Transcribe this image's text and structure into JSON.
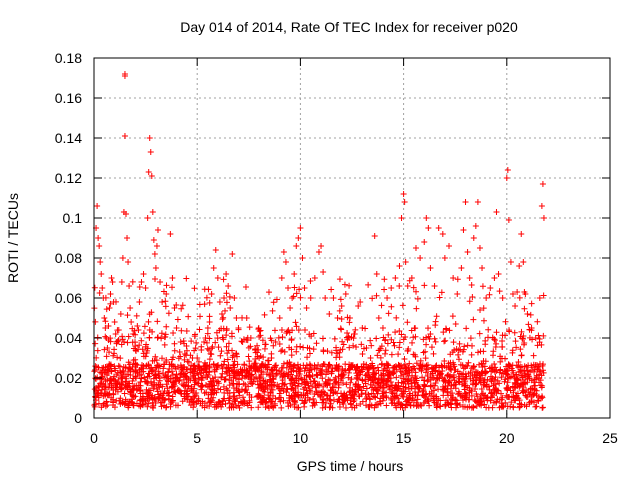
{
  "chart_data": {
    "type": "scatter",
    "title": "Day 014 of 2014, Rate Of TEC Index for receiver p020",
    "xlabel": "GPS time / hours",
    "ylabel": "ROTI / TECUs",
    "xlim": [
      0,
      25
    ],
    "ylim": [
      0,
      0.18
    ],
    "x_ticks": [
      0,
      5,
      10,
      15,
      20,
      25
    ],
    "x_tick_labels": [
      "0",
      "5",
      "10",
      "15",
      "20",
      "25"
    ],
    "y_ticks": [
      0,
      0.02,
      0.04,
      0.06,
      0.08,
      0.1,
      0.12,
      0.14,
      0.16,
      0.18
    ],
    "y_tick_labels": [
      "0",
      "0.02",
      "0.04",
      "0.06",
      "0.08",
      "0.1",
      "0.12",
      "0.14",
      "0.16",
      "0.18"
    ],
    "grid": true,
    "marker": "+",
    "color": "#ff0000",
    "data_range_x": [
      0,
      21.8
    ],
    "series": [
      {
        "name": "ROTI",
        "points": [
          [
            0.05,
            0.024
          ],
          [
            0.1,
            0.095
          ],
          [
            0.15,
            0.106
          ],
          [
            0.2,
            0.09
          ],
          [
            0.25,
            0.086
          ],
          [
            0.3,
            0.078
          ],
          [
            0.35,
            0.072
          ],
          [
            0.4,
            0.065
          ],
          [
            0.45,
            0.06
          ],
          [
            0.5,
            0.05
          ],
          [
            0.55,
            0.045
          ],
          [
            0.6,
            0.04
          ],
          [
            0.65,
            0.035
          ],
          [
            0.7,
            0.046
          ],
          [
            0.75,
            0.055
          ],
          [
            0.8,
            0.062
          ],
          [
            0.85,
            0.07
          ],
          [
            0.9,
            0.068
          ],
          [
            0.95,
            0.058
          ],
          [
            1.0,
            0.048
          ],
          [
            1.05,
            0.042
          ],
          [
            1.1,
            0.038
          ],
          [
            1.2,
            0.044
          ],
          [
            1.3,
            0.052
          ],
          [
            1.35,
            0.068
          ],
          [
            1.4,
            0.08
          ],
          [
            1.45,
            0.103
          ],
          [
            1.5,
            0.172
          ],
          [
            1.5,
            0.171
          ],
          [
            1.5,
            0.141
          ],
          [
            1.55,
            0.102
          ],
          [
            1.6,
            0.09
          ],
          [
            1.65,
            0.078
          ],
          [
            1.7,
            0.066
          ],
          [
            1.75,
            0.055
          ],
          [
            1.8,
            0.048
          ],
          [
            1.9,
            0.042
          ],
          [
            2.0,
            0.036
          ],
          [
            2.1,
            0.046
          ],
          [
            2.2,
            0.058
          ],
          [
            2.3,
            0.068
          ],
          [
            2.4,
            0.072
          ],
          [
            2.5,
            0.065
          ],
          [
            2.6,
            0.1
          ],
          [
            2.65,
            0.123
          ],
          [
            2.7,
            0.14
          ],
          [
            2.75,
            0.133
          ],
          [
            2.8,
            0.121
          ],
          [
            2.85,
            0.103
          ],
          [
            2.9,
            0.089
          ],
          [
            2.95,
            0.082
          ],
          [
            3.0,
            0.075
          ],
          [
            3.05,
            0.086
          ],
          [
            3.1,
            0.094
          ],
          [
            3.2,
            0.068
          ],
          [
            3.3,
            0.058
          ],
          [
            3.5,
            0.062
          ],
          [
            3.7,
            0.092
          ],
          [
            3.8,
            0.07
          ],
          [
            3.9,
            0.055
          ],
          [
            4.0,
            0.045
          ],
          [
            4.2,
            0.038
          ],
          [
            4.4,
            0.032
          ],
          [
            4.6,
            0.028
          ],
          [
            4.8,
            0.026
          ],
          [
            5.0,
            0.03
          ],
          [
            5.2,
            0.034
          ],
          [
            5.4,
            0.04
          ],
          [
            5.6,
            0.048
          ],
          [
            5.7,
            0.062
          ],
          [
            5.8,
            0.075
          ],
          [
            5.9,
            0.084
          ],
          [
            6.0,
            0.07
          ],
          [
            6.1,
            0.058
          ],
          [
            6.2,
            0.052
          ],
          [
            6.3,
            0.06
          ],
          [
            6.4,
            0.072
          ],
          [
            6.5,
            0.066
          ],
          [
            6.6,
            0.055
          ],
          [
            6.7,
            0.082
          ],
          [
            6.8,
            0.06
          ],
          [
            6.9,
            0.05
          ],
          [
            7.0,
            0.045
          ],
          [
            7.2,
            0.038
          ],
          [
            7.4,
            0.05
          ],
          [
            7.6,
            0.04
          ],
          [
            7.8,
            0.034
          ],
          [
            8.0,
            0.03
          ],
          [
            8.2,
            0.026
          ],
          [
            8.4,
            0.025
          ],
          [
            8.6,
            0.03
          ],
          [
            8.8,
            0.038
          ],
          [
            9.0,
            0.05
          ],
          [
            9.1,
            0.07
          ],
          [
            9.2,
            0.083
          ],
          [
            9.3,
            0.078
          ],
          [
            9.4,
            0.065
          ],
          [
            9.5,
            0.055
          ],
          [
            9.6,
            0.06
          ],
          [
            9.7,
            0.072
          ],
          [
            9.8,
            0.086
          ],
          [
            9.9,
            0.09
          ],
          [
            10.0,
            0.095
          ],
          [
            10.1,
            0.08
          ],
          [
            10.2,
            0.065
          ],
          [
            10.3,
            0.055
          ],
          [
            10.5,
            0.06
          ],
          [
            10.7,
            0.07
          ],
          [
            10.9,
            0.083
          ],
          [
            11.0,
            0.086
          ],
          [
            11.1,
            0.073
          ],
          [
            11.2,
            0.06
          ],
          [
            11.4,
            0.052
          ],
          [
            11.6,
            0.06
          ],
          [
            11.8,
            0.05
          ],
          [
            12.0,
            0.056
          ],
          [
            12.2,
            0.062
          ],
          [
            12.4,
            0.05
          ],
          [
            12.6,
            0.042
          ],
          [
            12.8,
            0.056
          ],
          [
            13.0,
            0.045
          ],
          [
            13.2,
            0.035
          ],
          [
            13.4,
            0.03
          ],
          [
            13.6,
            0.091
          ],
          [
            13.7,
            0.072
          ],
          [
            13.8,
            0.05
          ],
          [
            14.0,
            0.045
          ],
          [
            14.2,
            0.06
          ],
          [
            14.4,
            0.065
          ],
          [
            14.6,
            0.07
          ],
          [
            14.8,
            0.076
          ],
          [
            14.9,
            0.1
          ],
          [
            15.0,
            0.112
          ],
          [
            15.05,
            0.108
          ],
          [
            15.1,
            0.078
          ],
          [
            15.2,
            0.066
          ],
          [
            15.4,
            0.07
          ],
          [
            15.6,
            0.085
          ],
          [
            15.8,
            0.08
          ],
          [
            16.0,
            0.088
          ],
          [
            16.1,
            0.1
          ],
          [
            16.2,
            0.095
          ],
          [
            16.3,
            0.075
          ],
          [
            16.5,
            0.066
          ],
          [
            16.7,
            0.095
          ],
          [
            16.9,
            0.092
          ],
          [
            17.0,
            0.08
          ],
          [
            17.2,
            0.086
          ],
          [
            17.4,
            0.07
          ],
          [
            17.6,
            0.062
          ],
          [
            17.8,
            0.075
          ],
          [
            17.9,
            0.094
          ],
          [
            18.0,
            0.108
          ],
          [
            18.1,
            0.083
          ],
          [
            18.2,
            0.07
          ],
          [
            18.4,
            0.09
          ],
          [
            18.5,
            0.096
          ],
          [
            18.6,
            0.108
          ],
          [
            18.7,
            0.085
          ],
          [
            18.8,
            0.075
          ],
          [
            19.0,
            0.06
          ],
          [
            19.2,
            0.065
          ],
          [
            19.4,
            0.07
          ],
          [
            19.5,
            0.103
          ],
          [
            19.6,
            0.072
          ],
          [
            19.8,
            0.06
          ],
          [
            20.0,
            0.12
          ],
          [
            20.05,
            0.124
          ],
          [
            20.1,
            0.099
          ],
          [
            20.2,
            0.078
          ],
          [
            20.3,
            0.062
          ],
          [
            20.4,
            0.056
          ],
          [
            20.5,
            0.063
          ],
          [
            20.6,
            0.076
          ],
          [
            20.7,
            0.092
          ],
          [
            20.8,
            0.078
          ],
          [
            20.9,
            0.062
          ],
          [
            21.0,
            0.052
          ],
          [
            21.2,
            0.045
          ],
          [
            21.4,
            0.04
          ],
          [
            21.6,
            0.06
          ],
          [
            21.7,
            0.106
          ],
          [
            21.75,
            0.117
          ],
          [
            21.8,
            0.1
          ]
        ]
      }
    ]
  }
}
